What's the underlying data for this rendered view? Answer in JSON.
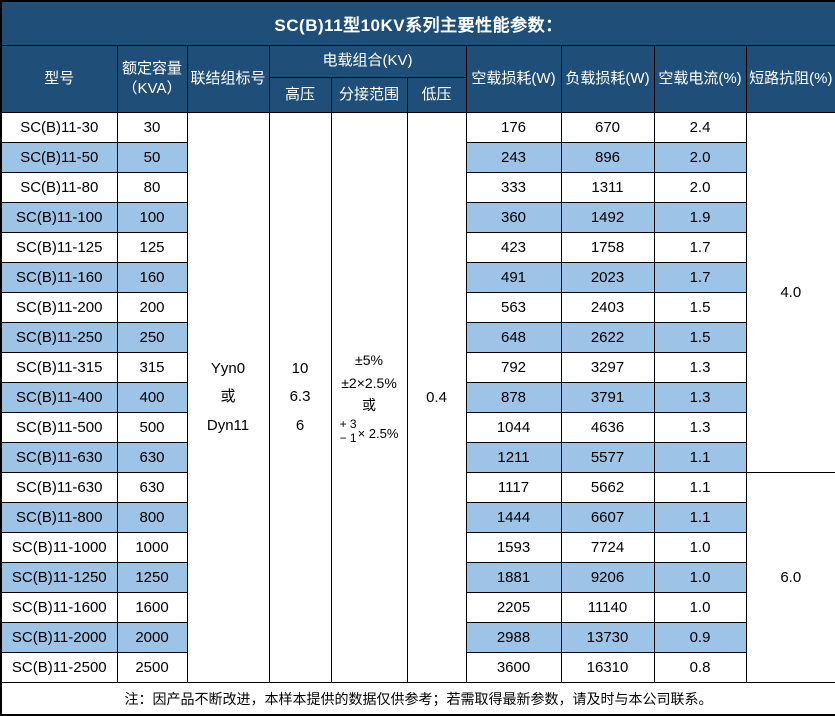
{
  "title": "SC(B)11型10KV系列主要性能参数：",
  "colors": {
    "title_bg": "#1F4E79",
    "header_bg": "#1F4E79",
    "alt_row_bg": "#9DC3E6",
    "border": "#000000",
    "header_text": "#FFFFFF",
    "body_text": "#000000"
  },
  "header": {
    "model": "型号",
    "capacity_line1": "额定容量",
    "capacity_line2": "（KVA）",
    "vector_group": "联结组标号",
    "voltage_combo": "电载组合(KV)",
    "hv": "高压",
    "tap_range": "分接范围",
    "lv": "低压",
    "no_load_loss": "空载损耗(W)",
    "load_loss": "负载损耗(W)",
    "no_load_current": "空载电流(%)",
    "impedance": "短路抗阻(%)"
  },
  "shared": {
    "vector_group_lines": [
      "Yyn0",
      "或",
      "Dyn11"
    ],
    "hv_lines": [
      "10",
      "6.3",
      "6"
    ],
    "tap_lines": [
      "±5%",
      "±2×2.5%",
      "或"
    ],
    "tap_stacked": {
      "top": "+ 3",
      "bottom": "− 1",
      "suffix": "× 2.5%"
    },
    "lv": "0.4"
  },
  "impedance_groups": [
    {
      "value": "4.0",
      "row_span": 12
    },
    {
      "value": "6.0",
      "row_span": 7
    }
  ],
  "rows": [
    {
      "model": "SC(B)11-30",
      "capacity": "30",
      "no_load_loss": "176",
      "load_loss": "670",
      "no_load_current": "2.4"
    },
    {
      "model": "SC(B)11-50",
      "capacity": "50",
      "no_load_loss": "243",
      "load_loss": "896",
      "no_load_current": "2.0"
    },
    {
      "model": "SC(B)11-80",
      "capacity": "80",
      "no_load_loss": "333",
      "load_loss": "1311",
      "no_load_current": "2.0"
    },
    {
      "model": "SC(B)11-100",
      "capacity": "100",
      "no_load_loss": "360",
      "load_loss": "1492",
      "no_load_current": "1.9"
    },
    {
      "model": "SC(B)11-125",
      "capacity": "125",
      "no_load_loss": "423",
      "load_loss": "1758",
      "no_load_current": "1.7"
    },
    {
      "model": "SC(B)11-160",
      "capacity": "160",
      "no_load_loss": "491",
      "load_loss": "2023",
      "no_load_current": "1.7"
    },
    {
      "model": "SC(B)11-200",
      "capacity": "200",
      "no_load_loss": "563",
      "load_loss": "2403",
      "no_load_current": "1.5"
    },
    {
      "model": "SC(B)11-250",
      "capacity": "250",
      "no_load_loss": "648",
      "load_loss": "2622",
      "no_load_current": "1.5"
    },
    {
      "model": "SC(B)11-315",
      "capacity": "315",
      "no_load_loss": "792",
      "load_loss": "3297",
      "no_load_current": "1.3"
    },
    {
      "model": "SC(B)11-400",
      "capacity": "400",
      "no_load_loss": "878",
      "load_loss": "3791",
      "no_load_current": "1.3"
    },
    {
      "model": "SC(B)11-500",
      "capacity": "500",
      "no_load_loss": "1044",
      "load_loss": "4636",
      "no_load_current": "1.3"
    },
    {
      "model": "SC(B)11-630",
      "capacity": "630",
      "no_load_loss": "1211",
      "load_loss": "5577",
      "no_load_current": "1.1"
    },
    {
      "model": "SC(B)11-630",
      "capacity": "630",
      "no_load_loss": "1117",
      "load_loss": "5662",
      "no_load_current": "1.1"
    },
    {
      "model": "SC(B)11-800",
      "capacity": "800",
      "no_load_loss": "1444",
      "load_loss": "6607",
      "no_load_current": "1.1"
    },
    {
      "model": "SC(B)11-1000",
      "capacity": "1000",
      "no_load_loss": "1593",
      "load_loss": "7724",
      "no_load_current": "1.0"
    },
    {
      "model": "SC(B)11-1250",
      "capacity": "1250",
      "no_load_loss": "1881",
      "load_loss": "9206",
      "no_load_current": "1.0"
    },
    {
      "model": "SC(B)11-1600",
      "capacity": "1600",
      "no_load_loss": "2205",
      "load_loss": "11140",
      "no_load_current": "1.0"
    },
    {
      "model": "SC(B)11-2000",
      "capacity": "2000",
      "no_load_loss": "2988",
      "load_loss": "13730",
      "no_load_current": "0.9"
    },
    {
      "model": "SC(B)11-2500",
      "capacity": "2500",
      "no_load_loss": "3600",
      "load_loss": "16310",
      "no_load_current": "0.8"
    }
  ],
  "footer_note": "注：因产品不断改进，本样本提供的数据仅供参考；若需取得最新参数，请及时与本公司联系。"
}
